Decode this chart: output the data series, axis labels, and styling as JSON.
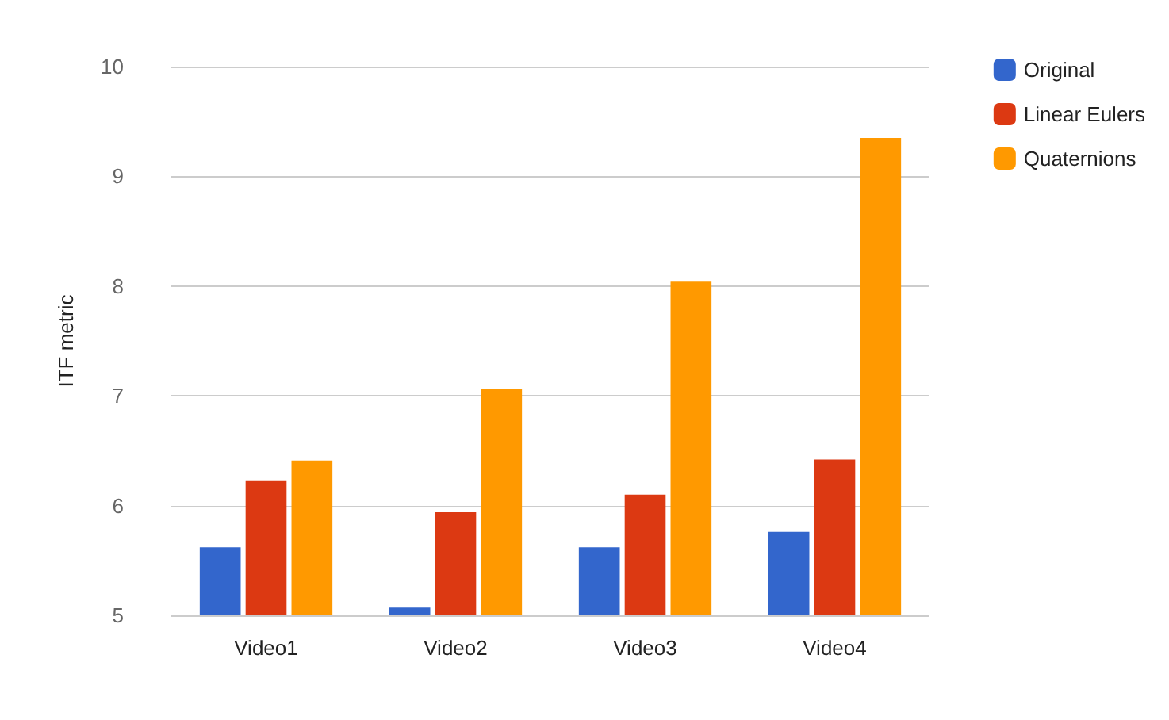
{
  "chart_data": {
    "type": "bar",
    "ylabel": "ITF metric",
    "categories": [
      "Video1",
      "Video2",
      "Video3",
      "Video4"
    ],
    "series": [
      {
        "name": "Original",
        "color": "#3366cc",
        "values": [
          5.62,
          5.07,
          5.62,
          5.76
        ]
      },
      {
        "name": "Linear Eulers",
        "color": "#dc3912",
        "values": [
          6.23,
          5.94,
          6.1,
          6.42
        ]
      },
      {
        "name": "Quaternions",
        "color": "#ff9900",
        "values": [
          6.41,
          7.06,
          8.04,
          9.35
        ]
      }
    ],
    "ylim": [
      5,
      10
    ],
    "yticks": [
      5,
      6,
      7,
      8,
      9,
      10
    ],
    "grid": "y",
    "legend": "top right"
  }
}
